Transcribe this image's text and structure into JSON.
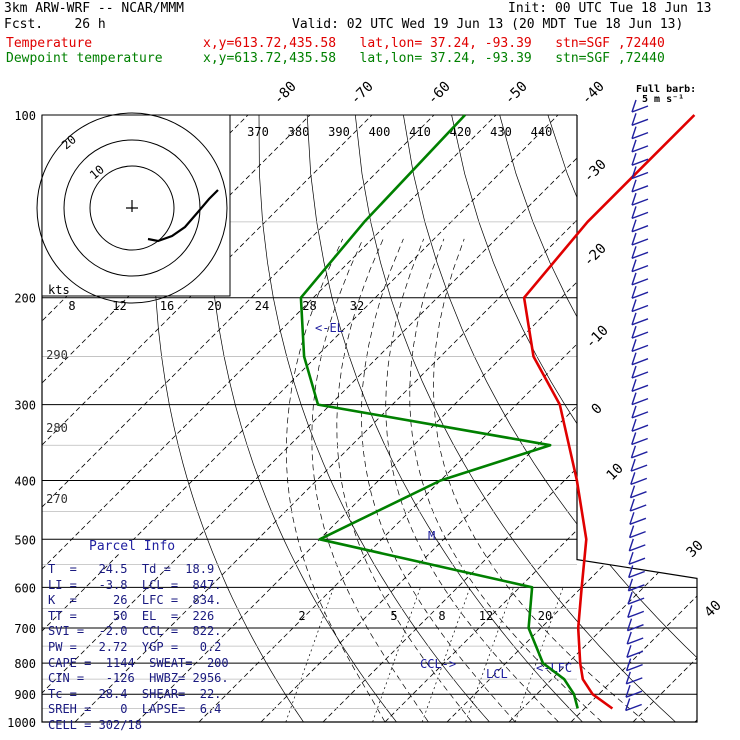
{
  "header": {
    "model": "3km ARW-WRF -- NCAR/MMM",
    "fcst": "Fcst.    26 h",
    "init": "Init: 00 UTC Tue 18 Jun 13",
    "valid": "Valid: 02 UTC Wed 19 Jun 13 (20 MDT Tue 18 Jun 13)",
    "temp_label": "Temperature",
    "dew_label": "Dewpoint temperature",
    "temp_loc": "x,y=613.72,435.58   lat,lon= 37.24, -93.39   stn=SGF ,72440",
    "dew_loc": "x,y=613.72,435.58   lat,lon= 37.24, -93.39   stn=SGF ,72440",
    "barb_note_1": "Full barb:",
    "barb_note_2": "5 m s⁻¹",
    "colors": {
      "temperature": "#e00000",
      "dewpoint": "#008000",
      "barbs": "#2020a0"
    }
  },
  "chart_data": {
    "type": "skew-t",
    "pressure_ticks": [
      100,
      200,
      300,
      400,
      500,
      600,
      700,
      800,
      900,
      1000
    ],
    "isotherm_labels_top": [
      "-80",
      "-70",
      "-60",
      "-50",
      "-40"
    ],
    "isotherm_labels_right": [
      "-30",
      "-20",
      "-10",
      "0",
      "10",
      "30",
      "40"
    ],
    "theta_e_labels": [
      "370",
      "380",
      "390",
      "400",
      "410",
      "420",
      "430",
      "440"
    ],
    "hodo_speed_labels": [
      "8",
      "12",
      "16",
      "20",
      "24",
      "28",
      "32"
    ],
    "hodo_units": "kts",
    "hodo_ring_labels": [
      "10",
      "20"
    ],
    "theta_labels": [
      "290",
      "280",
      "270"
    ],
    "mixing_ratio_labels": [
      "2",
      "5",
      "8",
      "12",
      "20"
    ],
    "levels": [
      {
        "name": "<-EL",
        "p": 226
      },
      {
        "name": "M",
        "p": 500
      },
      {
        "name": "CCL->",
        "p": 822
      },
      {
        "name": "LCL",
        "p": 847
      },
      {
        "name": "<-LFC",
        "p": 834
      }
    ],
    "temperature": [
      [
        100,
        -58
      ],
      [
        150,
        -58
      ],
      [
        200,
        -56
      ],
      [
        250,
        -45
      ],
      [
        300,
        -33
      ],
      [
        400,
        -18
      ],
      [
        500,
        -7
      ],
      [
        600,
        0
      ],
      [
        700,
        6
      ],
      [
        800,
        12
      ],
      [
        850,
        15
      ],
      [
        900,
        19
      ],
      [
        950,
        24.5
      ]
    ],
    "dewpoint": [
      [
        100,
        -95
      ],
      [
        150,
        -94
      ],
      [
        200,
        -92
      ],
      [
        250,
        -82
      ],
      [
        300,
        -72
      ],
      [
        350,
        -28
      ],
      [
        400,
        -40
      ],
      [
        500,
        -50
      ],
      [
        600,
        -8
      ],
      [
        700,
        -2
      ],
      [
        800,
        6
      ],
      [
        850,
        12
      ],
      [
        900,
        16
      ],
      [
        950,
        18.9
      ]
    ]
  },
  "parcel": {
    "title": "Parcel Info",
    "rows": [
      "T  =   24.5  Td =  18.9",
      "LI =   -3.8  LCL =  847.",
      "K  =     26  LFC =  834.",
      "TT =     50  EL  =  226",
      "SVI =  -2.0  CCL =  822.",
      "PW =   2.72  YGP =   0.2",
      "CAPE =  1144  SWEAT=  200",
      "CIN =   -126  HWBZ= 2956.",
      "Tc =   28.4  SHEAR=  22.",
      "SREH =    0  LAPSE=  6.4",
      "CELL = 302/18"
    ]
  }
}
